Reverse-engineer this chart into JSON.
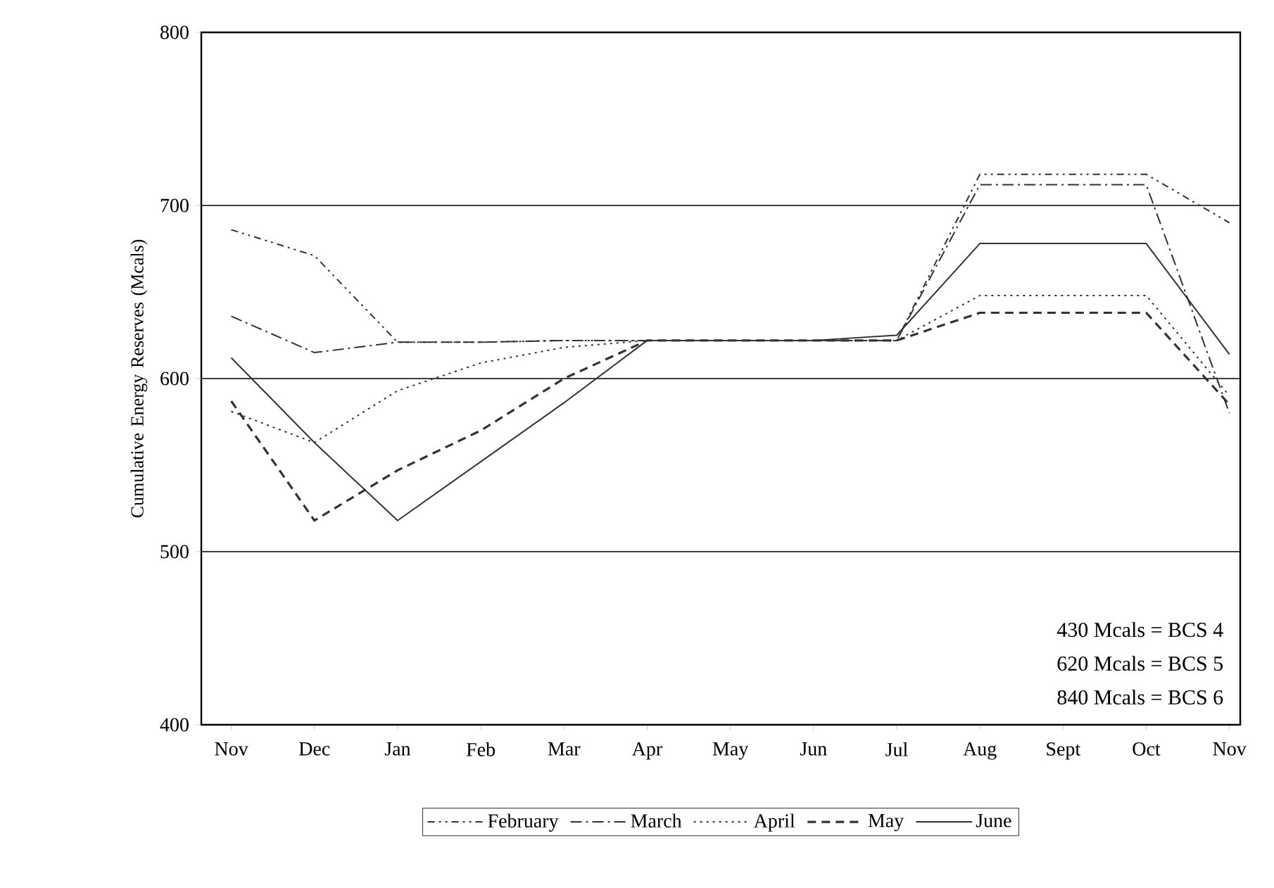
{
  "chart_data": {
    "type": "line",
    "ylabel": "Cumulative Energy Reserves (Mcals)",
    "categories": [
      "Nov",
      "Dec",
      "Jan",
      "Feb",
      "Mar",
      "Apr",
      "May",
      "Jun",
      "Jul",
      "Aug",
      "Sept",
      "Oct",
      "Nov"
    ],
    "series": [
      {
        "name": "February",
        "color": "#333333",
        "line_style": "dashdotdot",
        "values": [
          686,
          671,
          621,
          621,
          622,
          622,
          622,
          622,
          622,
          718,
          718,
          718,
          690
        ]
      },
      {
        "name": "March",
        "color": "#333333",
        "line_style": "dashdot",
        "values": [
          636,
          615,
          621,
          621,
          622,
          622,
          622,
          622,
          622,
          712,
          712,
          712,
          580
        ]
      },
      {
        "name": "April",
        "color": "#333333",
        "line_style": "dotted",
        "values": [
          581,
          563,
          593,
          609,
          618,
          622,
          622,
          622,
          622,
          648,
          648,
          648,
          590
        ]
      },
      {
        "name": "May",
        "color": "#333333",
        "line_style": "dashed",
        "values": [
          587,
          518,
          547,
          570,
          600,
          622,
          622,
          622,
          622,
          638,
          638,
          638,
          585
        ]
      },
      {
        "name": "June",
        "color": "#333333",
        "line_style": "solid",
        "values": [
          612,
          563,
          518,
          552,
          586,
          622,
          622,
          622,
          625,
          678,
          678,
          678,
          614
        ]
      }
    ],
    "ylim": [
      400,
      800
    ],
    "yticks": [
      400,
      500,
      600,
      700,
      800
    ],
    "grid": "y",
    "legend": "bottom",
    "marker": "none",
    "annotations": [
      "430 Mcals = BCS 4",
      "620 Mcals = BCS 5",
      "840 Mcals = BCS 6"
    ]
  }
}
